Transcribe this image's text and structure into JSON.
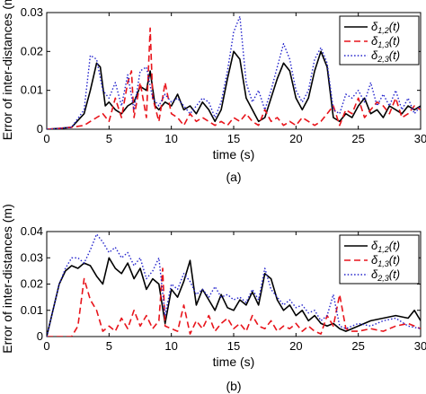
{
  "chart_data": [
    {
      "type": "line",
      "panel_label": "(a)",
      "xlabel": "time (s)",
      "ylabel": "Error of inter-distances (m)",
      "xlim": [
        0,
        30
      ],
      "ylim": [
        0,
        0.03
      ],
      "xticks": [
        "0",
        "5",
        "10",
        "15",
        "20",
        "25",
        "30"
      ],
      "yticks": [
        "0",
        "0.01",
        "0.02",
        "0.03"
      ],
      "legend": "top-right",
      "grid": false,
      "series": [
        {
          "name": "δ1,2(t)",
          "color": "#000000",
          "style": "solid",
          "x": [
            0,
            1,
            2,
            3,
            3.5,
            4,
            4.3,
            4.7,
            5,
            5.5,
            6,
            6.5,
            7,
            7.5,
            8,
            8.3,
            8.7,
            9,
            9.5,
            10,
            10.5,
            11,
            11.5,
            12,
            12.5,
            13,
            13.5,
            14,
            14.5,
            15,
            15.5,
            16,
            16.5,
            17,
            17.5,
            18,
            18.5,
            19,
            19.5,
            20,
            20.5,
            21,
            21.5,
            22,
            22.5,
            23,
            23.5,
            24,
            24.5,
            25,
            25.5,
            26,
            26.5,
            27,
            27.5,
            28,
            28.5,
            29,
            29.5,
            30
          ],
          "y": [
            0,
            0.0002,
            0.0005,
            0.004,
            0.01,
            0.017,
            0.016,
            0.006,
            0.007,
            0.005,
            0.004,
            0.006,
            0.007,
            0.011,
            0.01,
            0.015,
            0.006,
            0.005,
            0.007,
            0.006,
            0.009,
            0.005,
            0.006,
            0.004,
            0.007,
            0.005,
            0.002,
            0.005,
            0.013,
            0.02,
            0.018,
            0.008,
            0.005,
            0.002,
            0.003,
            0.008,
            0.013,
            0.017,
            0.015,
            0.008,
            0.005,
            0.008,
            0.015,
            0.02,
            0.016,
            0.003,
            0.002,
            0.004,
            0.003,
            0.006,
            0.008,
            0.004,
            0.005,
            0.003,
            0.006,
            0.005,
            0.004,
            0.006,
            0.005,
            0.006
          ]
        },
        {
          "name": "δ1,3(t)",
          "color": "#e8141b",
          "style": "dashed",
          "x": [
            0,
            1,
            2,
            3,
            3.5,
            4,
            4.5,
            5,
            5.5,
            6,
            6.5,
            6.8,
            7,
            7.5,
            8,
            8.3,
            8.5,
            9,
            9.5,
            10,
            10.5,
            11,
            11.5,
            12,
            12.5,
            13,
            13.5,
            14,
            14.5,
            15,
            15.5,
            16,
            16.5,
            17,
            17.5,
            18,
            18.5,
            19,
            19.5,
            20,
            20.5,
            21,
            21.5,
            22,
            22.5,
            23,
            23.5,
            24,
            24.5,
            25,
            25.5,
            26,
            26.5,
            27,
            27.5,
            28,
            28.5,
            29,
            29.5,
            30
          ],
          "y": [
            0,
            0.0002,
            0.0005,
            0.001,
            0.002,
            0.003,
            0.004,
            0.002,
            0.008,
            0.003,
            0.012,
            0.015,
            0.003,
            0.012,
            0.003,
            0.026,
            0.008,
            0.002,
            0.012,
            0.004,
            0.003,
            0.001,
            0.004,
            0.002,
            0.003,
            0.002,
            0.001,
            0.002,
            0.001,
            0.003,
            0.002,
            0.004,
            0.002,
            0.001,
            0.005,
            0.002,
            0.003,
            0.001,
            0.002,
            0.001,
            0.003,
            0.002,
            0.001,
            0.002,
            0.004,
            0.006,
            0.001,
            0.005,
            0.004,
            0.008,
            0.003,
            0.005,
            0.007,
            0.006,
            0.004,
            0.008,
            0.003,
            0.004,
            0.006,
            0.005
          ]
        },
        {
          "name": "δ2,3(t)",
          "color": "#2222cc",
          "style": "dotted",
          "x": [
            0,
            1,
            2,
            3,
            3.5,
            4,
            4.5,
            5,
            5.5,
            6,
            6.5,
            7,
            7.5,
            8,
            8.5,
            9,
            9.5,
            10,
            10.5,
            11,
            11.5,
            12,
            12.5,
            13,
            13.5,
            14,
            14.5,
            15,
            15.5,
            16,
            16.5,
            17,
            17.5,
            18,
            18.5,
            19,
            19.5,
            20,
            20.5,
            21,
            21.5,
            22,
            22.5,
            23,
            23.5,
            24,
            24.5,
            25,
            25.5,
            26,
            26.5,
            27,
            27.5,
            28,
            28.5,
            29,
            29.5,
            30
          ],
          "y": [
            0,
            0.0002,
            0.0005,
            0.005,
            0.019,
            0.018,
            0.01,
            0.008,
            0.012,
            0.006,
            0.014,
            0.005,
            0.015,
            0.016,
            0.008,
            0.006,
            0.009,
            0.007,
            0.008,
            0.006,
            0.004,
            0.006,
            0.008,
            0.007,
            0.003,
            0.007,
            0.015,
            0.025,
            0.029,
            0.012,
            0.007,
            0.01,
            0.005,
            0.01,
            0.016,
            0.022,
            0.018,
            0.01,
            0.007,
            0.01,
            0.018,
            0.021,
            0.017,
            0.005,
            0.004,
            0.009,
            0.008,
            0.01,
            0.007,
            0.012,
            0.006,
            0.009,
            0.006,
            0.01,
            0.005,
            0.008,
            0.004,
            0.006
          ]
        }
      ]
    },
    {
      "type": "line",
      "panel_label": "(b)",
      "xlabel": "time (s)",
      "ylabel": "Error of inter-distances (m)",
      "xlim": [
        0,
        30
      ],
      "ylim": [
        0,
        0.04
      ],
      "xticks": [
        "0",
        "5",
        "10",
        "15",
        "20",
        "25",
        "30"
      ],
      "yticks": [
        "0",
        "0.01",
        "0.02",
        "0.03",
        "0.04"
      ],
      "legend": "top-right",
      "grid": false,
      "series": [
        {
          "name": "δ1,2(t)",
          "color": "#000000",
          "style": "solid",
          "x": [
            0,
            0.5,
            1,
            1.5,
            2,
            2.5,
            3,
            3.5,
            4,
            4.5,
            5,
            5.5,
            6,
            6.5,
            7,
            7.5,
            8,
            8.5,
            9,
            9.5,
            10,
            10.5,
            11,
            11.5,
            12,
            12.5,
            13,
            13.5,
            14,
            14.5,
            15,
            15.5,
            16,
            16.5,
            17,
            17.5,
            18,
            18.5,
            19,
            19.5,
            20,
            20.5,
            21,
            21.5,
            22,
            22.5,
            23,
            23.5,
            24,
            24.5,
            25,
            26,
            27,
            28,
            29,
            29.5,
            30
          ],
          "y": [
            0,
            0.01,
            0.02,
            0.025,
            0.027,
            0.026,
            0.028,
            0.027,
            0.023,
            0.02,
            0.03,
            0.026,
            0.024,
            0.028,
            0.022,
            0.026,
            0.018,
            0.022,
            0.02,
            0.005,
            0.018,
            0.015,
            0.021,
            0.029,
            0.012,
            0.018,
            0.014,
            0.01,
            0.016,
            0.011,
            0.01,
            0.014,
            0.012,
            0.017,
            0.012,
            0.024,
            0.022,
            0.014,
            0.01,
            0.012,
            0.008,
            0.01,
            0.006,
            0.008,
            0.005,
            0.004,
            0.005,
            0.003,
            0.002,
            0.003,
            0.004,
            0.006,
            0.007,
            0.008,
            0.007,
            0.01,
            0.006
          ]
        },
        {
          "name": "δ1,3(t)",
          "color": "#e8141b",
          "style": "dashed",
          "x": [
            0,
            1,
            2,
            2.5,
            3,
            3.5,
            4,
            4.5,
            5,
            5.5,
            6,
            6.5,
            7,
            7.5,
            8,
            8.5,
            9,
            9.3,
            9.5,
            10,
            10.5,
            11,
            11.5,
            12,
            12.5,
            13,
            13.5,
            14,
            14.5,
            15,
            15.5,
            16,
            16.5,
            17,
            17.5,
            18,
            18.5,
            19,
            19.5,
            20,
            20.5,
            21,
            21.5,
            22,
            22.5,
            23,
            23.5,
            24,
            24.5,
            25,
            26,
            27,
            28,
            29,
            30
          ],
          "y": [
            0,
            0,
            0,
            0.004,
            0.022,
            0.014,
            0.01,
            0.002,
            0.004,
            0.002,
            0.007,
            0.003,
            0.01,
            0.004,
            0.008,
            0.003,
            0.006,
            0.026,
            0.004,
            0.003,
            0.002,
            0.012,
            0.001,
            0.006,
            0.003,
            0.008,
            0.002,
            0.005,
            0.007,
            0.003,
            0.005,
            0.002,
            0.008,
            0.004,
            0.003,
            0.006,
            0.002,
            0.004,
            0.003,
            0.005,
            0.002,
            0.004,
            0.002,
            0.001,
            0.008,
            0.004,
            0.016,
            0.003,
            0.002,
            0.002,
            0.003,
            0.002,
            0.004,
            0.005,
            0.003
          ]
        },
        {
          "name": "δ2,3(t)",
          "color": "#2222cc",
          "style": "dotted",
          "x": [
            0,
            0.5,
            1,
            1.5,
            2,
            2.5,
            3,
            3.5,
            4,
            4.5,
            5,
            5.5,
            6,
            6.5,
            7,
            7.5,
            8,
            8.5,
            9,
            9.5,
            10,
            10.5,
            11,
            11.5,
            12,
            12.5,
            13,
            13.5,
            14,
            14.5,
            15,
            15.5,
            16,
            16.5,
            17,
            17.5,
            18,
            18.5,
            19,
            19.5,
            20,
            20.5,
            21,
            21.5,
            22,
            22.5,
            23,
            23.5,
            24,
            24.5,
            25,
            26,
            27,
            28,
            29,
            30
          ],
          "y": [
            0,
            0.01,
            0.02,
            0.026,
            0.03,
            0.03,
            0.028,
            0.033,
            0.039,
            0.036,
            0.032,
            0.034,
            0.03,
            0.032,
            0.027,
            0.03,
            0.022,
            0.025,
            0.03,
            0.008,
            0.02,
            0.018,
            0.024,
            0.021,
            0.016,
            0.018,
            0.015,
            0.019,
            0.015,
            0.016,
            0.014,
            0.015,
            0.013,
            0.018,
            0.014,
            0.026,
            0.018,
            0.015,
            0.012,
            0.014,
            0.011,
            0.012,
            0.009,
            0.01,
            0.006,
            0.008,
            0.016,
            0.004,
            0.003,
            0.004,
            0.005,
            0.004,
            0.006,
            0.007,
            0.004,
            0.003
          ]
        }
      ]
    }
  ]
}
